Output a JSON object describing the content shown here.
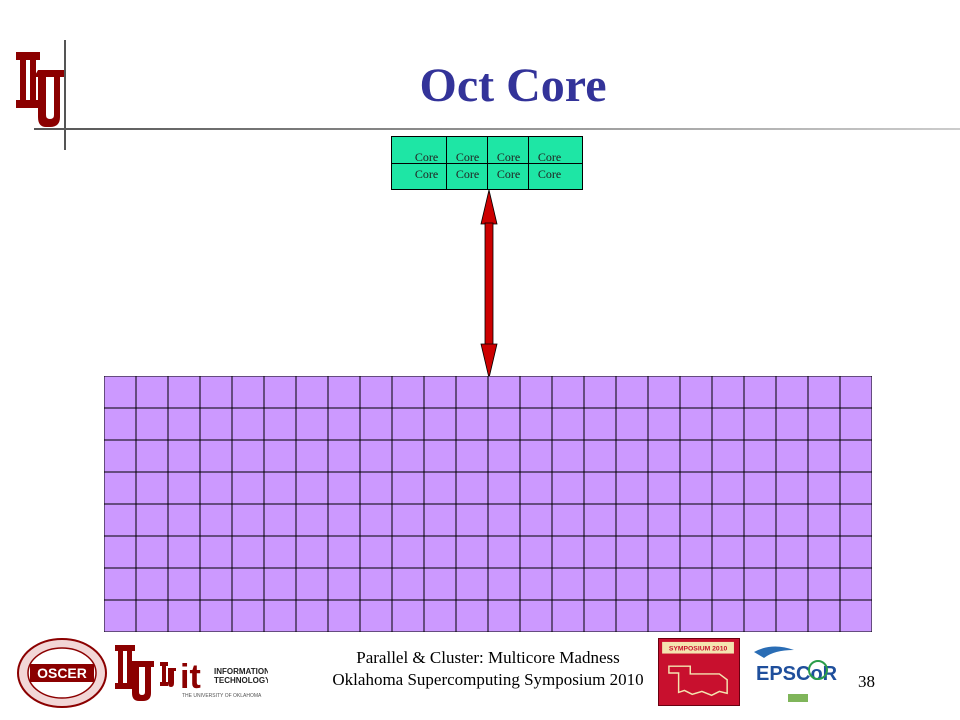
{
  "slide": {
    "title": "Oct Core",
    "page_number": "38",
    "footer": {
      "line1": "Parallel & Cluster: Multicore Madness",
      "line2": "Oklahoma Supercomputing Symposium 2010"
    }
  },
  "cores": {
    "label": "Core",
    "count": 8,
    "rows": 2,
    "cols": 4,
    "color": "#1ee6a5"
  },
  "memory": {
    "rows": 8,
    "cols": 24,
    "color": "#cc99ff"
  },
  "colors": {
    "title": "#333399",
    "arrow": "#cc0000",
    "ou_crimson": "#8b0000"
  },
  "logos": {
    "oscer": "OSCER",
    "it_letters": "it",
    "it_text_1": "INFORMATION",
    "it_text_2": "TECHNOLOGY",
    "it_subtext": "THE UNIVERSITY OF OKLAHOMA",
    "symposium": "SYMPOSIUM 2010",
    "epscor": "EPSCoR"
  }
}
